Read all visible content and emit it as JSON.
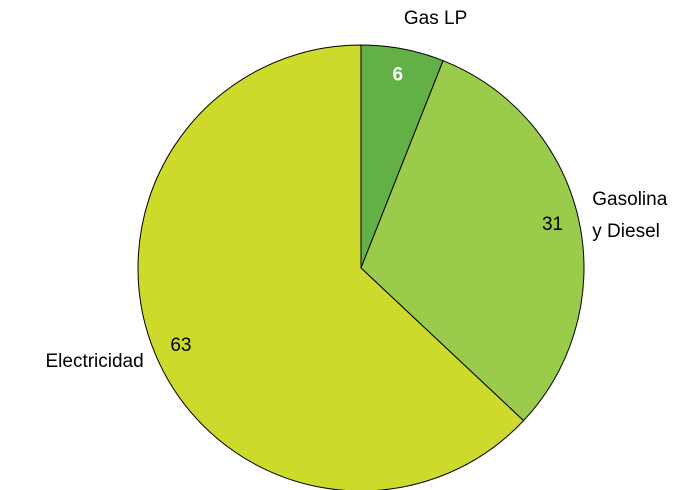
{
  "chart_data": {
    "type": "pie",
    "categories": [
      "Gas LP",
      "Gasolina\ny Diesel",
      "Electricidad"
    ],
    "values": [
      6,
      31,
      63
    ],
    "colors": [
      "#62b046",
      "#9bcb4a",
      "#cdd92b"
    ],
    "label_colors": [
      "#ffffff",
      "#000000",
      "#000000"
    ]
  }
}
